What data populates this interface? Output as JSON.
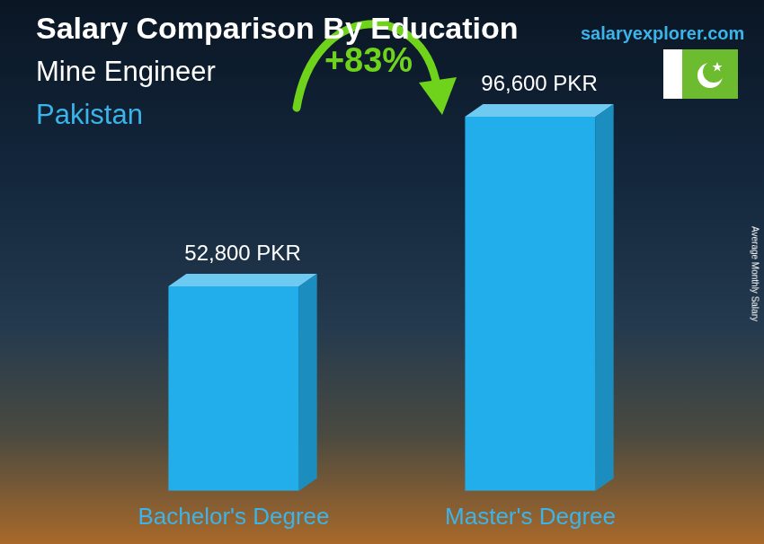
{
  "chart_data": {
    "type": "bar",
    "title": "Salary Comparison By Education",
    "subtitle": "Mine Engineer",
    "region": "Pakistan",
    "source": "salaryexplorer.com",
    "y_label": "Average Monthly Salary",
    "annotation": "+83%",
    "categories": [
      "Bachelor's Degree",
      "Master's Degree"
    ],
    "values": [
      52800,
      96600
    ],
    "value_labels": [
      "52,800 PKR",
      "96,600 PKR"
    ],
    "color": "#22aeea",
    "data_labels": true,
    "tick_labels": "x",
    "grid": false
  }
}
